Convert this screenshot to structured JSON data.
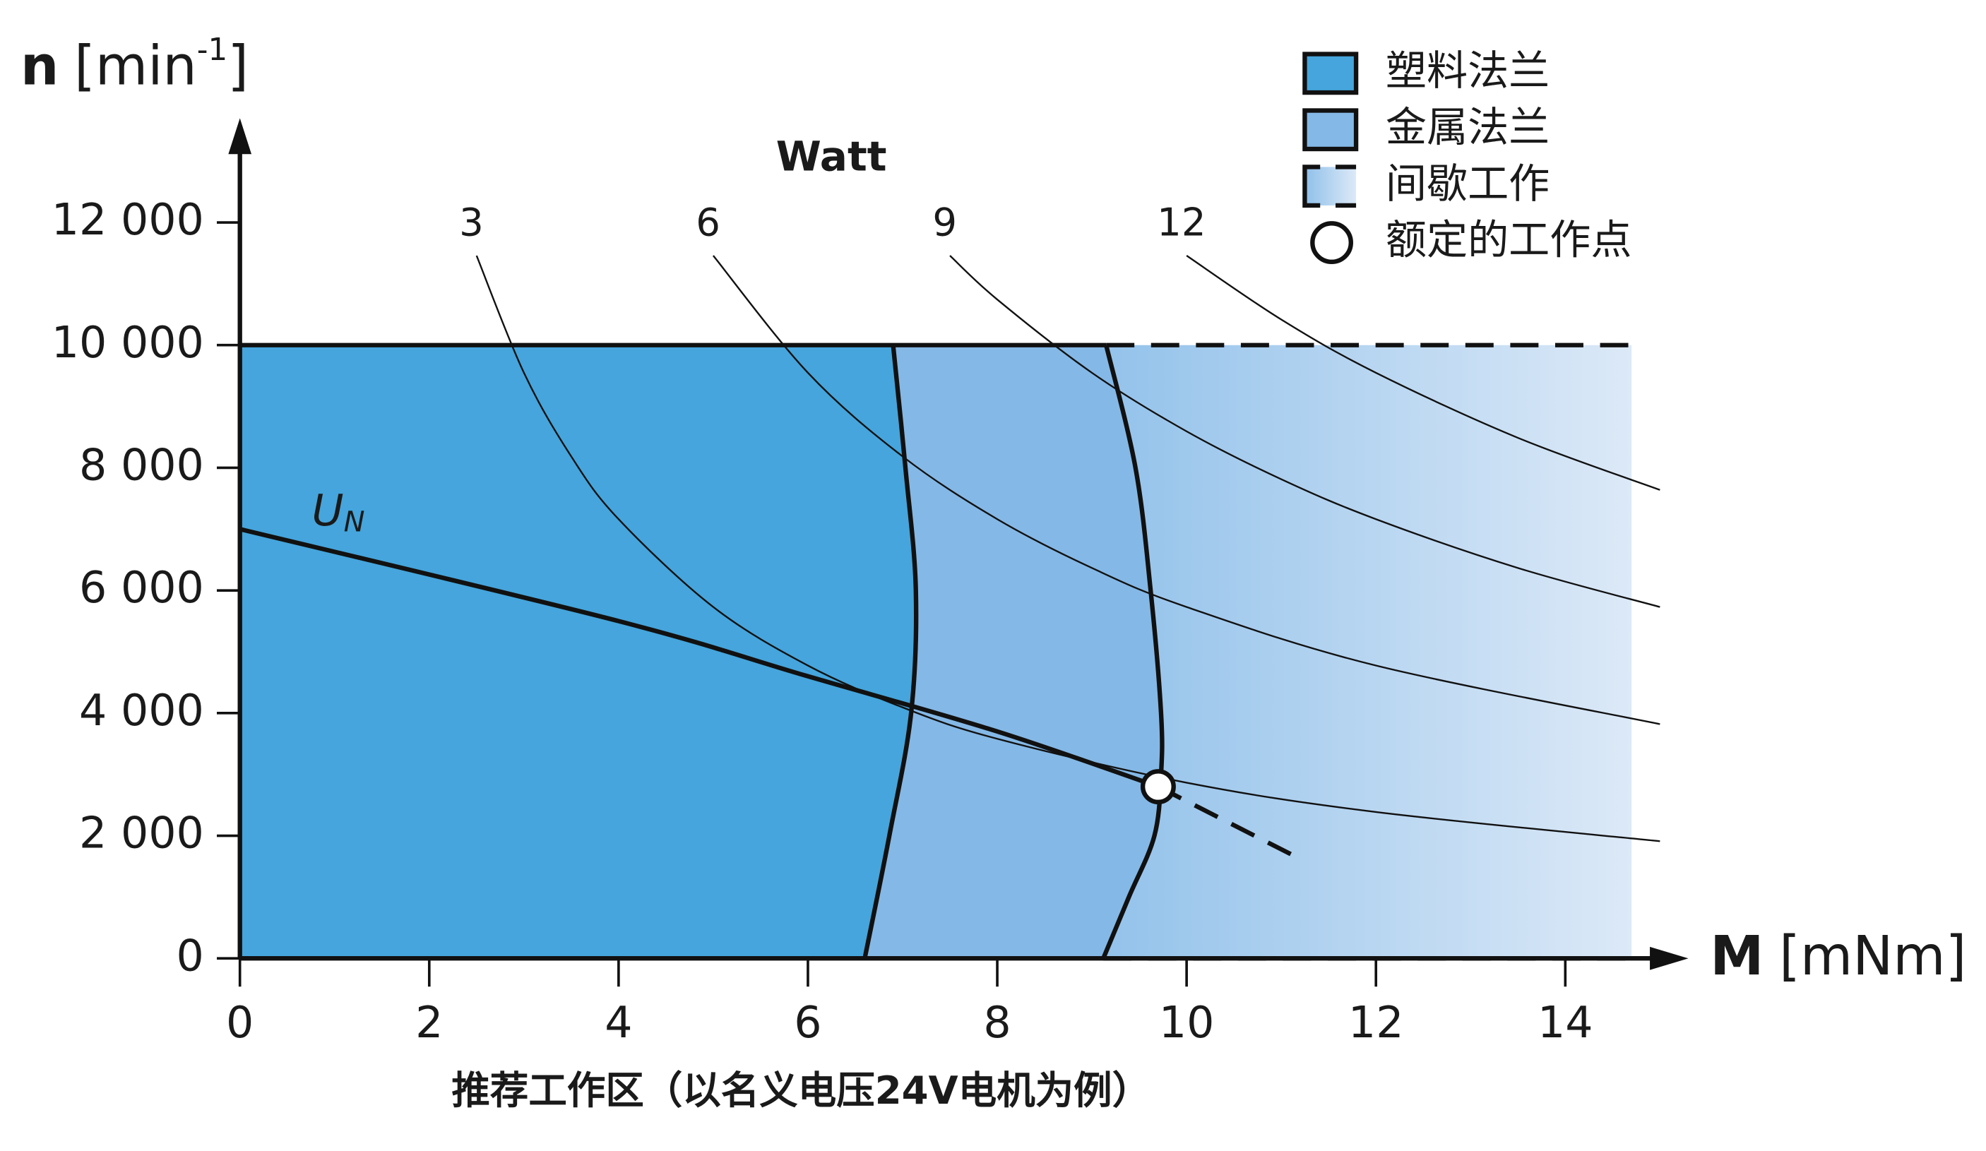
{
  "chart_data": {
    "type": "operating-range",
    "title": "推荐工作区（以名义电压24V电机为例）",
    "y_label": {
      "symbol": "n",
      "unit": "[min",
      "exp": "-1",
      "close": "]"
    },
    "x_label": {
      "symbol": "M",
      "unit": "[mNm]"
    },
    "xlim": [
      0,
      15.3
    ],
    "ylim": [
      0,
      13700
    ],
    "xticks": [
      0,
      2,
      4,
      6,
      8,
      10,
      12,
      14
    ],
    "yticks": [
      0,
      {
        "value": 2000,
        "label": "2 000"
      },
      {
        "value": 4000,
        "label": "4 000"
      },
      {
        "value": 6000,
        "label": "6 000"
      },
      {
        "value": 8000,
        "label": "8 000"
      },
      {
        "value": 10000,
        "label": "10 000"
      },
      {
        "value": 12000,
        "label": "12 000"
      }
    ],
    "regions": [
      {
        "name": "塑料法兰",
        "color": "#45a5dc",
        "x": [
          6.9,
          7.03,
          7.14,
          7.09,
          6.86,
          6.6
        ],
        "values": [
          10000,
          8000,
          6000,
          4000,
          2000,
          0
        ]
      },
      {
        "name": "金属法兰",
        "color": "#84b8e6",
        "x": [
          9.15,
          9.46,
          9.62,
          9.73,
          9.73,
          9.66,
          9.39,
          9.12
        ],
        "values": [
          10000,
          8000,
          6000,
          4000,
          3000,
          2000,
          1000,
          0
        ]
      },
      {
        "name": "间歇工作",
        "color": [
          "#8fc0ea",
          "#dce9f7"
        ],
        "border": "dashed",
        "x": [
          14.7,
          14.7
        ],
        "values": [
          10000,
          0
        ]
      }
    ],
    "power_label": "Watt",
    "power_curves": [
      {
        "name": "3",
        "x": [
          2.5,
          3,
          3.5,
          4,
          5,
          6,
          7,
          8,
          10,
          12,
          15
        ],
        "values": [
          11459,
          9549,
          8185,
          7162,
          5730,
          4775,
          4093,
          3581,
          2865,
          2387,
          1910
        ]
      },
      {
        "name": "6",
        "x": [
          5,
          6,
          7,
          8,
          9,
          10,
          12,
          15
        ],
        "values": [
          11459,
          9549,
          8185,
          7162,
          6366,
          5730,
          4775,
          3820
        ]
      },
      {
        "name": "9",
        "x": [
          7.5,
          8,
          9,
          10,
          11,
          12,
          13.5,
          15
        ],
        "values": [
          11459,
          10743,
          9549,
          8594,
          7813,
          7162,
          6366,
          5730
        ]
      },
      {
        "name": "12",
        "x": [
          10,
          11,
          12,
          13.5,
          15
        ],
        "values": [
          11459,
          10417,
          9549,
          8488,
          7639
        ]
      }
    ],
    "voltage_line": {
      "name": {
        "main": "U",
        "sub": "N"
      },
      "x": [
        0,
        4,
        6,
        8,
        9.7
      ],
      "values": [
        7000,
        5500,
        4600,
        3700,
        2800
      ],
      "extension": {
        "x": [
          9.7,
          11.1
        ],
        "values": [
          2800,
          1700
        ]
      }
    },
    "rated_point": {
      "name": "额定的工作点",
      "x": 9.7,
      "value": 2800
    },
    "legend": "upper right"
  }
}
